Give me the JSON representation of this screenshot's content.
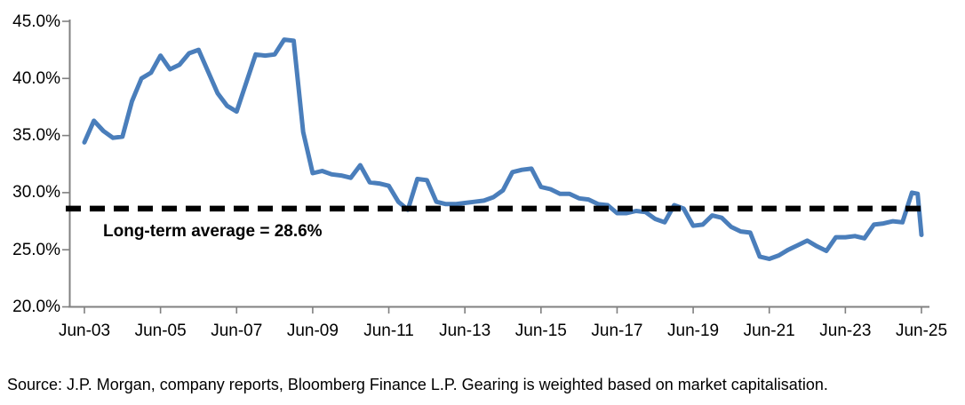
{
  "chart_data": {
    "type": "line",
    "title": "",
    "xlabel": "",
    "ylabel": "",
    "grid": "off",
    "legend": "none",
    "ylim": [
      20,
      45
    ],
    "y_ticks": [
      "45.0%",
      "40.0%",
      "35.0%",
      "30.0%",
      "25.0%",
      "20.0%"
    ],
    "x_ticks": [
      "Jun-03",
      "Jun-05",
      "Jun-07",
      "Jun-09",
      "Jun-11",
      "Jun-13",
      "Jun-15",
      "Jun-17",
      "Jun-19",
      "Jun-21",
      "Jun-23",
      "Jun-25"
    ],
    "x_tick_interval_years": 2,
    "xlim_years": [
      0,
      22
    ],
    "axis_color": "#808080",
    "average_line": {
      "label": "Long-term average = 28.6%",
      "value": 28.6,
      "color": "#000000",
      "style": "dashed"
    },
    "series": [
      {
        "name": "Gearing (weighted by market capitalisation)",
        "color": "#4A7EBB",
        "point_format": [
          "date",
          "years_since_start",
          "value_pct"
        ],
        "points": [
          [
            "Jun-03",
            0,
            34.4
          ],
          [
            "Sep-03",
            0.25,
            36.3
          ],
          [
            "Dec-03",
            0.5,
            35.4
          ],
          [
            "Mar-04",
            0.75,
            34.8
          ],
          [
            "Jun-04",
            1,
            34.9
          ],
          [
            "Sep-04",
            1.25,
            38.0
          ],
          [
            "Dec-04",
            1.5,
            40.0
          ],
          [
            "Mar-05",
            1.75,
            40.5
          ],
          [
            "Jun-05",
            2,
            42.0
          ],
          [
            "Sep-05",
            2.25,
            40.8
          ],
          [
            "Dec-05",
            2.5,
            41.2
          ],
          [
            "Mar-06",
            2.75,
            42.2
          ],
          [
            "Jun-06",
            3,
            42.5
          ],
          [
            "Sep-06",
            3.25,
            40.6
          ],
          [
            "Dec-06",
            3.5,
            38.7
          ],
          [
            "Mar-07",
            3.75,
            37.6
          ],
          [
            "Jun-07",
            4,
            37.1
          ],
          [
            "Sep-07",
            4.25,
            39.6
          ],
          [
            "Dec-07",
            4.5,
            42.1
          ],
          [
            "Mar-08",
            4.75,
            42.0
          ],
          [
            "Jun-08",
            5,
            42.1
          ],
          [
            "Sep-08",
            5.25,
            43.4
          ],
          [
            "Dec-08",
            5.5,
            43.3
          ],
          [
            "Mar-09",
            5.75,
            35.3
          ],
          [
            "Jun-09",
            6,
            31.7
          ],
          [
            "Sep-09",
            6.25,
            31.9
          ],
          [
            "Dec-09",
            6.5,
            31.6
          ],
          [
            "Mar-10",
            6.75,
            31.5
          ],
          [
            "Jun-10",
            7,
            31.3
          ],
          [
            "Sep-10",
            7.25,
            32.4
          ],
          [
            "Dec-10",
            7.5,
            30.9
          ],
          [
            "Mar-11",
            7.75,
            30.8
          ],
          [
            "Jun-11",
            8,
            30.6
          ],
          [
            "Sep-11",
            8.25,
            29.2
          ],
          [
            "Dec-11",
            8.5,
            28.5
          ],
          [
            "Mar-12",
            8.75,
            31.2
          ],
          [
            "Jun-12",
            9,
            31.1
          ],
          [
            "Sep-12",
            9.25,
            29.2
          ],
          [
            "Dec-12",
            9.5,
            29.0
          ],
          [
            "Mar-13",
            9.75,
            29.0
          ],
          [
            "Jun-13",
            10,
            29.1
          ],
          [
            "Sep-13",
            10.25,
            29.2
          ],
          [
            "Dec-13",
            10.5,
            29.3
          ],
          [
            "Mar-14",
            10.75,
            29.6
          ],
          [
            "Jun-14",
            11,
            30.2
          ],
          [
            "Sep-14",
            11.25,
            31.8
          ],
          [
            "Dec-14",
            11.5,
            32.0
          ],
          [
            "Mar-15",
            11.75,
            32.1
          ],
          [
            "Jun-15",
            12,
            30.5
          ],
          [
            "Sep-15",
            12.25,
            30.3
          ],
          [
            "Dec-15",
            12.5,
            29.9
          ],
          [
            "Mar-16",
            12.75,
            29.9
          ],
          [
            "Jun-16",
            13,
            29.5
          ],
          [
            "Sep-16",
            13.25,
            29.4
          ],
          [
            "Dec-16",
            13.5,
            29.0
          ],
          [
            "Mar-17",
            13.75,
            28.9
          ],
          [
            "Jun-17",
            14,
            28.2
          ],
          [
            "Sep-17",
            14.25,
            28.2
          ],
          [
            "Dec-17",
            14.5,
            28.4
          ],
          [
            "Mar-18",
            14.75,
            28.3
          ],
          [
            "Jun-18",
            15,
            27.7
          ],
          [
            "Sep-18",
            15.25,
            27.4
          ],
          [
            "Dec-18",
            15.5,
            28.9
          ],
          [
            "Mar-19",
            15.75,
            28.6
          ],
          [
            "Jun-19",
            16,
            27.1
          ],
          [
            "Sep-19",
            16.25,
            27.2
          ],
          [
            "Dec-19",
            16.5,
            28.0
          ],
          [
            "Mar-20",
            16.75,
            27.8
          ],
          [
            "Jun-20",
            17,
            27.0
          ],
          [
            "Sep-20",
            17.25,
            26.6
          ],
          [
            "Dec-20",
            17.5,
            26.5
          ],
          [
            "Mar-21",
            17.75,
            24.4
          ],
          [
            "Jun-21",
            18,
            24.2
          ],
          [
            "Sep-21",
            18.25,
            24.5
          ],
          [
            "Dec-21",
            18.5,
            25.0
          ],
          [
            "Mar-22",
            18.75,
            25.4
          ],
          [
            "Jun-22",
            19,
            25.8
          ],
          [
            "Sep-22",
            19.25,
            25.3
          ],
          [
            "Dec-22",
            19.5,
            24.9
          ],
          [
            "Mar-23",
            19.75,
            26.1
          ],
          [
            "Jun-23",
            20,
            26.1
          ],
          [
            "Sep-23",
            20.25,
            26.2
          ],
          [
            "Dec-23",
            20.5,
            26.0
          ],
          [
            "Mar-24",
            20.75,
            27.2
          ],
          [
            "Jun-24",
            21,
            27.3
          ],
          [
            "Sep-24",
            21.25,
            27.5
          ],
          [
            "Dec-24",
            21.5,
            27.4
          ],
          [
            "Mar-25",
            21.75,
            30.0
          ],
          [
            "May-25",
            21.9,
            29.9
          ],
          [
            "Jun-25",
            22,
            26.3
          ]
        ]
      }
    ]
  },
  "source_note": "Source: J.P. Morgan, company reports, Bloomberg Finance L.P. Gearing is weighted based on market capitalisation."
}
